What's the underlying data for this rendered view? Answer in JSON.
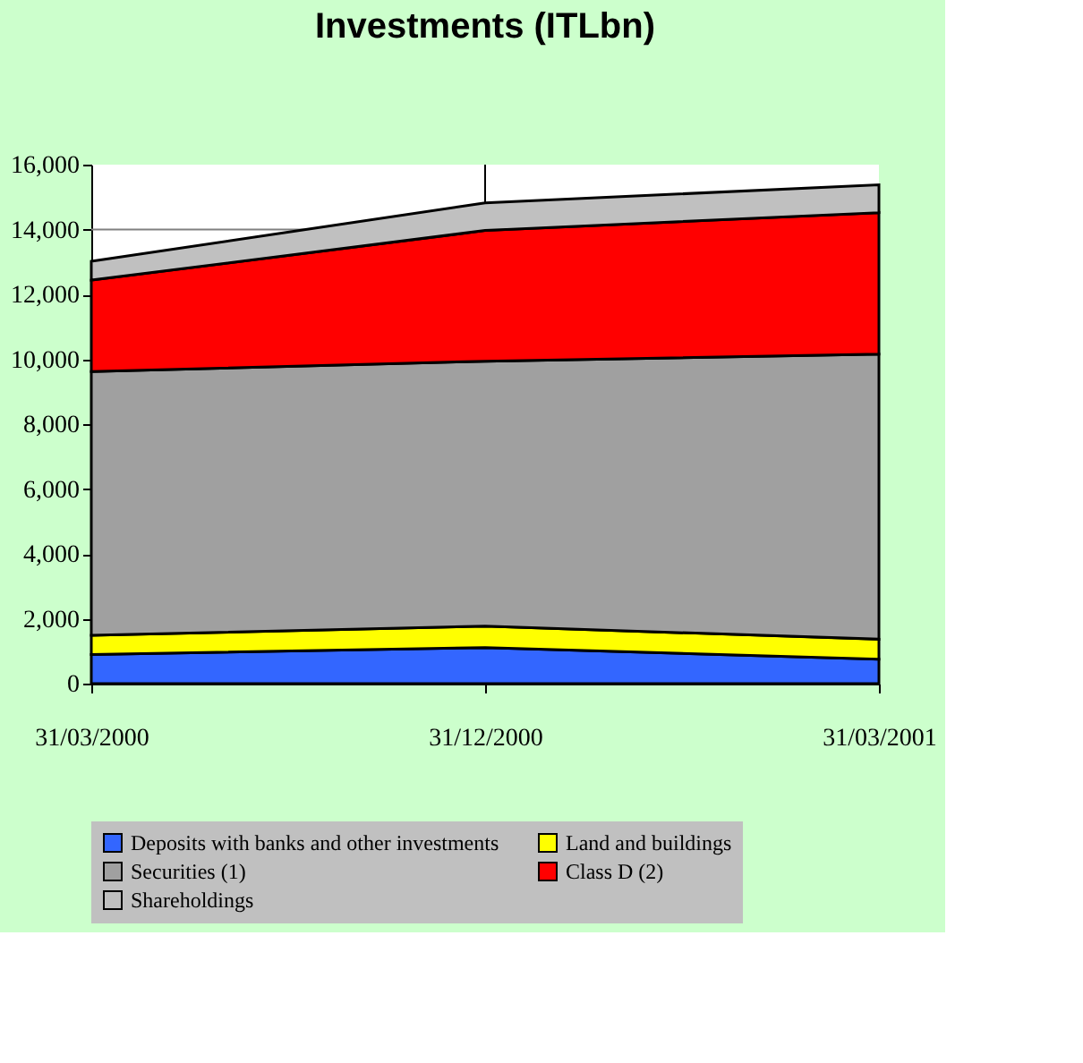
{
  "chart_data": {
    "type": "area",
    "title": "Investments (ITLbn)",
    "stacked": true,
    "categories": [
      "31/03/2000",
      "31/12/2000",
      "31/03/2001"
    ],
    "series": [
      {
        "name": "Deposits with banks and other investments",
        "color": "#3366ff",
        "values": [
          900,
          1110,
          750
        ]
      },
      {
        "name": "Land and buildings",
        "color": "#ffff00",
        "values": [
          590,
          660,
          620
        ]
      },
      {
        "name": "Securities (1)",
        "color": "#a0a0a0",
        "values": [
          8130,
          8170,
          8790
        ]
      },
      {
        "name": "Class D (2)",
        "color": "#ff0000",
        "values": [
          2820,
          4030,
          4360
        ]
      },
      {
        "name": "Shareholdings",
        "color": "#c0c0c0",
        "values": [
          580,
          850,
          860
        ]
      }
    ],
    "ylim": [
      0,
      16000
    ],
    "yticks": [
      {
        "value": 0,
        "label": "0"
      },
      {
        "value": 2000,
        "label": "2,000"
      },
      {
        "value": 4000,
        "label": "4,000"
      },
      {
        "value": 6000,
        "label": "6,000"
      },
      {
        "value": 8000,
        "label": "8,000"
      },
      {
        "value": 10000,
        "label": "10,000"
      },
      {
        "value": 12000,
        "label": "12,000"
      },
      {
        "value": 14000,
        "label": "14,000"
      },
      {
        "value": 16000,
        "label": "16,000"
      }
    ],
    "ref_lines": [
      {
        "axis": "y",
        "value": 14000,
        "color": "#808080"
      },
      {
        "axis": "x",
        "value": "31/12/2000",
        "color": "#000000"
      }
    ],
    "legend": "bottom"
  }
}
